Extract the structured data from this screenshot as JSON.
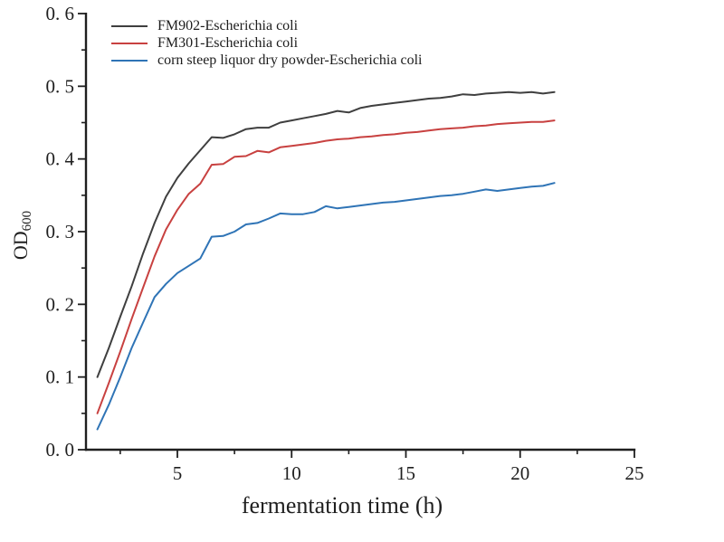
{
  "figure": {
    "background": "#ffffff",
    "axis_color": "#1f1f1f"
  },
  "chart_data": {
    "type": "line",
    "title": "",
    "xlabel": "fermentation time (h)",
    "ylabel": "OD",
    "ylabel_subscript": "600",
    "xlim": [
      1,
      25
    ],
    "ylim": [
      0.0,
      0.6
    ],
    "grid": false,
    "legend_position": "top-left-inside",
    "x_ticks": [
      5,
      10,
      15,
      20,
      25
    ],
    "x_tick_labels": [
      "5",
      "10",
      "15",
      "20",
      "25"
    ],
    "x_minor_ticks": [
      2.5,
      7.5,
      12.5,
      17.5,
      22.5
    ],
    "y_ticks": [
      0.0,
      0.1,
      0.2,
      0.3,
      0.4,
      0.5,
      0.6
    ],
    "y_tick_labels": [
      "0. 0",
      "0. 1",
      "0. 2",
      "0. 3",
      "0. 4",
      "0. 5",
      "0. 6"
    ],
    "y_minor_ticks": [
      0.05,
      0.15,
      0.25,
      0.35,
      0.45,
      0.55
    ],
    "x": [
      1.5,
      2,
      2.5,
      3,
      3.5,
      4,
      4.5,
      5,
      5.5,
      6,
      6.5,
      7,
      7.5,
      8,
      8.5,
      9,
      9.5,
      10,
      10.5,
      11,
      11.5,
      12,
      12.5,
      13,
      13.5,
      14,
      14.5,
      15,
      15.5,
      16,
      16.5,
      17,
      17.5,
      18,
      18.5,
      19,
      19.5,
      20,
      20.5,
      21,
      21.5
    ],
    "series": [
      {
        "name": "FM902-Escherichia coli",
        "color": "#3f3f3f",
        "values": [
          0.1,
          0.14,
          0.183,
          0.225,
          0.27,
          0.312,
          0.348,
          0.374,
          0.394,
          0.412,
          0.43,
          0.429,
          0.434,
          0.441,
          0.443,
          0.443,
          0.45,
          0.453,
          0.456,
          0.459,
          0.462,
          0.466,
          0.464,
          0.47,
          0.473,
          0.475,
          0.477,
          0.479,
          0.481,
          0.483,
          0.484,
          0.486,
          0.489,
          0.488,
          0.49,
          0.491,
          0.492,
          0.491,
          0.492,
          0.49,
          0.492
        ]
      },
      {
        "name": "FM301-Escherichia coli",
        "color": "#c84140",
        "values": [
          0.05,
          0.092,
          0.135,
          0.18,
          0.223,
          0.266,
          0.303,
          0.33,
          0.352,
          0.366,
          0.392,
          0.393,
          0.403,
          0.404,
          0.411,
          0.409,
          0.416,
          0.418,
          0.42,
          0.422,
          0.425,
          0.427,
          0.428,
          0.43,
          0.431,
          0.433,
          0.434,
          0.436,
          0.437,
          0.439,
          0.441,
          0.442,
          0.443,
          0.445,
          0.446,
          0.448,
          0.449,
          0.45,
          0.451,
          0.451,
          0.453
        ]
      },
      {
        "name": "corn steep liquor dry powder-Escherichia coli",
        "color": "#2f74b6",
        "values": [
          0.028,
          0.062,
          0.1,
          0.14,
          0.175,
          0.21,
          0.228,
          0.243,
          0.253,
          0.263,
          0.293,
          0.294,
          0.3,
          0.31,
          0.312,
          0.318,
          0.325,
          0.324,
          0.324,
          0.327,
          0.335,
          0.332,
          0.334,
          0.336,
          0.338,
          0.34,
          0.341,
          0.343,
          0.345,
          0.347,
          0.349,
          0.35,
          0.352,
          0.355,
          0.358,
          0.356,
          0.358,
          0.36,
          0.362,
          0.363,
          0.367
        ]
      }
    ]
  }
}
